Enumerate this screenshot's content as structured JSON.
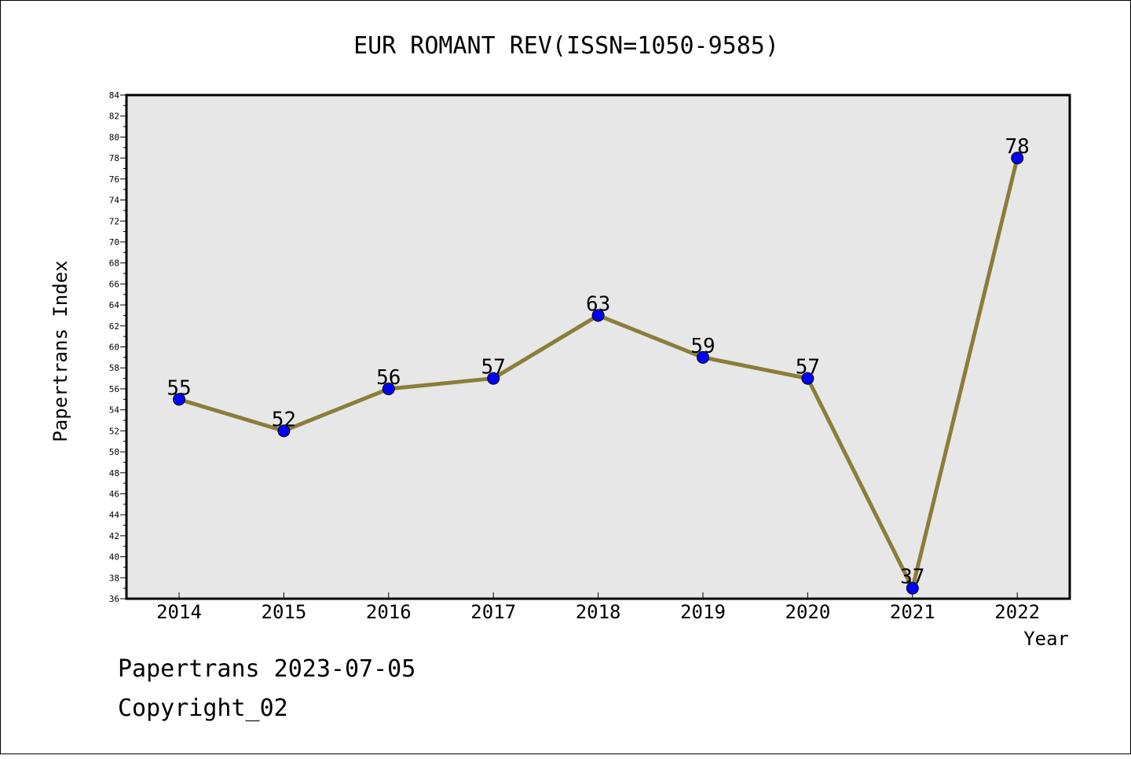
{
  "chart_data": {
    "type": "line",
    "title": "EUR ROMANT REV(ISSN=1050-9585)",
    "xlabel": "Year",
    "ylabel": "Papertrans Index",
    "categories": [
      "2014",
      "2015",
      "2016",
      "2017",
      "2018",
      "2019",
      "2020",
      "2021",
      "2022"
    ],
    "series": [
      {
        "values": [
          55,
          52,
          56,
          57,
          63,
          59,
          57,
          37,
          78
        ]
      }
    ],
    "ylim": [
      36,
      84
    ],
    "ytick_step": 2,
    "data_labels": true,
    "grid": false,
    "colors": {
      "line": "#8b7d3a",
      "marker": "#0000ff",
      "plot_bg": "#e7e7e7"
    }
  },
  "footer": {
    "line1": "Papertrans 2023-07-05",
    "line2": "Copyright_02"
  }
}
